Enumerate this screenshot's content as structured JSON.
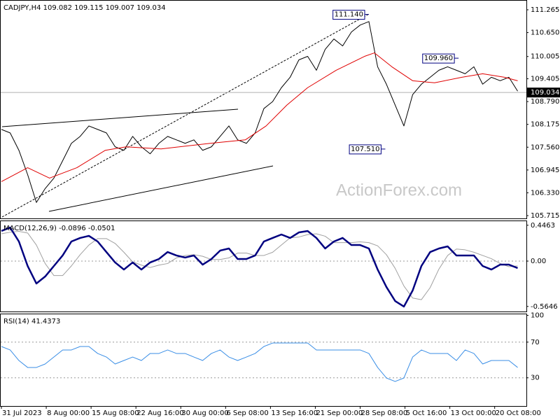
{
  "chart_data": [
    {
      "type": "line",
      "title": "CADJPY,H4 109.082 109.115 109.007 109.034",
      "watermark": "ActionForex.com",
      "xlim": [
        0,
        480
      ],
      "ylim": [
        105.64,
        111.51
      ],
      "yticks": [
        111.265,
        {
          "value": 110.65,
          "label": "110.650"
        },
        110.005,
        109.405,
        {
          "value": 108.79,
          "label": "108.790"
        },
        108.175,
        {
          "value": 107.56,
          "label": "107.560"
        },
        106.945,
        {
          "value": 106.33,
          "label": "106.330"
        },
        105.715
      ],
      "last": 109.034,
      "annotations": [
        {
          "x": 336,
          "value": 111.14,
          "label": "111.140"
        },
        {
          "x": 418,
          "value": 109.96,
          "label": "109.960"
        },
        {
          "x": 351,
          "value": 107.51,
          "label": "107.510"
        }
      ],
      "x": [
        0,
        8,
        16,
        24,
        32,
        40,
        48,
        56,
        64,
        72,
        80,
        88,
        96,
        104,
        112,
        120,
        128,
        136,
        144,
        152,
        160,
        168,
        176,
        184,
        192,
        200,
        208,
        216,
        224,
        232,
        240,
        248,
        256,
        264,
        272,
        280,
        288,
        296,
        304,
        312,
        320,
        328,
        336,
        344,
        352,
        360,
        368,
        376,
        384,
        392,
        400,
        408,
        416,
        424,
        432,
        440,
        448,
        456,
        464,
        472
      ],
      "series": [
        {
          "color": "#000000",
          "values": [
            108.039,
            107.945,
            107.476,
            106.82,
            106.069,
            106.444,
            106.726,
            107.195,
            107.664,
            107.851,
            108.133,
            108.039,
            107.945,
            107.57,
            107.476,
            107.851,
            107.57,
            107.382,
            107.664,
            107.851,
            107.758,
            107.664,
            107.758,
            107.476,
            107.57,
            107.851,
            108.133,
            107.758,
            107.664,
            107.945,
            108.602,
            108.79,
            109.165,
            109.446,
            109.915,
            110.009,
            109.634,
            110.197,
            110.478,
            110.29,
            110.666,
            110.853,
            110.947,
            109.728,
            109.259,
            108.696,
            108.133,
            108.977,
            109.259,
            109.446,
            109.634,
            109.728,
            109.634,
            109.54,
            109.728,
            109.259,
            109.446,
            109.352,
            109.446,
            109.071
          ]
        },
        {
          "color": "#e00000",
          "x": [
            0,
            24,
            44,
            69,
            95,
            114,
            146,
            191,
            223,
            242,
            261,
            280,
            306,
            332,
            341,
            357,
            376,
            396,
            421,
            440,
            460,
            472
          ],
          "values": [
            106.632,
            107.007,
            106.726,
            107.007,
            107.476,
            107.57,
            107.514,
            107.664,
            107.758,
            108.133,
            108.696,
            109.165,
            109.634,
            110.009,
            110.103,
            109.728,
            109.352,
            109.296,
            109.446,
            109.54,
            109.446,
            109.352
          ]
        }
      ]
    },
    {
      "type": "line",
      "title": "MACD(12,26,9) -0.0896 -0.0501",
      "xlim": [
        0,
        480
      ],
      "ylim": [
        -0.6275,
        0.4967
      ],
      "yticks": [
        0.4463,
        {
          "value": 0,
          "label": "0.00"
        },
        -0.5646
      ],
      "levels": [
        0
      ],
      "x": [
        0,
        8,
        16,
        24,
        32,
        40,
        48,
        56,
        64,
        72,
        80,
        88,
        96,
        104,
        112,
        120,
        128,
        136,
        144,
        152,
        160,
        168,
        176,
        184,
        192,
        200,
        208,
        216,
        224,
        232,
        240,
        248,
        256,
        264,
        272,
        280,
        288,
        296,
        304,
        312,
        320,
        328,
        336,
        344,
        352,
        360,
        368,
        376,
        384,
        392,
        400,
        408,
        416,
        424,
        432,
        440,
        448,
        456,
        464,
        472
      ],
      "series": [
        {
          "color": "#a0a0a0",
          "width": 1,
          "values": [
            0.34,
            0.36,
            0.37,
            0.35,
            0.2,
            -0.03,
            -0.18,
            -0.18,
            -0.06,
            0.08,
            0.2,
            0.28,
            0.28,
            0.22,
            0.11,
            -0.01,
            -0.05,
            -0.08,
            -0.05,
            -0.03,
            0.04,
            0.07,
            0.08,
            0.06,
            0.02,
            0.02,
            0.04,
            0.1,
            0.1,
            0.07,
            0.07,
            0.11,
            0.2,
            0.29,
            0.3,
            0.33,
            0.34,
            0.31,
            0.23,
            0.23,
            0.23,
            0.24,
            0.23,
            0.19,
            0.08,
            -0.09,
            -0.31,
            -0.46,
            -0.48,
            -0.33,
            -0.1,
            0.07,
            0.15,
            0.14,
            0.11,
            0.07,
            0.03,
            -0.03,
            -0.07,
            -0.06
          ]
        },
        {
          "color": "#000080",
          "width": 2.5,
          "values": [
            0.375,
            0.418,
            0.244,
            -0.061,
            -0.279,
            -0.192,
            -0.061,
            0.07,
            0.244,
            0.288,
            0.314,
            0.244,
            0.113,
            -0.017,
            -0.105,
            -0.017,
            -0.105,
            -0.017,
            0.026,
            0.113,
            0.07,
            0.044,
            0.07,
            -0.044,
            0.026,
            0.131,
            0.157,
            0.026,
            0.026,
            0.07,
            0.244,
            0.288,
            0.331,
            0.288,
            0.357,
            0.375,
            0.288,
            0.157,
            0.244,
            0.288,
            0.2,
            0.2,
            0.157,
            -0.105,
            -0.322,
            -0.497,
            -0.566,
            -0.366,
            -0.061,
            0.113,
            0.157,
            0.183,
            0.07,
            0.07,
            0.07,
            -0.061,
            -0.105,
            -0.044,
            -0.044,
            -0.087
          ]
        }
      ]
    },
    {
      "type": "line",
      "title": "RSI(14) 41.4373",
      "xlim": [
        0,
        480
      ],
      "ylim": [
        -1.6,
        101.2
      ],
      "yticks": [
        100,
        70,
        30
      ],
      "levels": [
        70,
        30
      ],
      "xticks": [
        {
          "value": 0,
          "label": "31 Jul 2023"
        },
        {
          "value": 41,
          "label": "8 Aug 00:00"
        },
        {
          "value": 82,
          "label": "15 Aug 08:00"
        },
        {
          "value": 123,
          "label": "22 Aug 16:00"
        },
        {
          "value": 164,
          "label": "30 Aug 00:00"
        },
        {
          "value": 205,
          "label": "6 Sep 08:00"
        },
        {
          "value": 246,
          "label": "13 Sep 16:00"
        },
        {
          "value": 287,
          "label": "21 Sep 00:00"
        },
        {
          "value": 328,
          "label": "28 Sep 08:00"
        },
        {
          "value": 369,
          "label": "5 Oct 16:00"
        },
        {
          "value": 410,
          "label": "13 Oct 00:00"
        },
        {
          "value": 451,
          "label": "20 Oct 08:00"
        }
      ],
      "x": [
        0,
        8,
        16,
        24,
        32,
        40,
        48,
        56,
        64,
        72,
        80,
        88,
        96,
        104,
        112,
        120,
        128,
        136,
        144,
        152,
        160,
        168,
        176,
        184,
        192,
        200,
        208,
        216,
        224,
        232,
        240,
        248,
        256,
        264,
        272,
        280,
        288,
        296,
        304,
        312,
        320,
        328,
        336,
        344,
        352,
        360,
        368,
        376,
        384,
        392,
        400,
        408,
        416,
        424,
        432,
        440,
        448,
        456,
        464,
        472
      ],
      "series": [
        {
          "color": "#3a8ee6",
          "width": 1,
          "values": [
            65.1,
            61.2,
            49.4,
            41.6,
            41.6,
            45.5,
            53.3,
            61.2,
            61.2,
            65.1,
            65.1,
            57.3,
            53.3,
            45.5,
            49.4,
            53.3,
            49.4,
            57.3,
            57.3,
            61.2,
            57.3,
            57.3,
            53.3,
            49.4,
            57.3,
            61.2,
            53.3,
            49.4,
            53.3,
            57.3,
            65.1,
            69.0,
            69.0,
            69.0,
            69.0,
            69.0,
            61.2,
            61.2,
            61.2,
            61.2,
            61.2,
            61.2,
            57.3,
            41.6,
            29.8,
            25.9,
            29.8,
            53.3,
            61.2,
            57.3,
            57.3,
            57.3,
            49.4,
            61.2,
            57.3,
            45.5,
            49.4,
            49.4,
            49.4,
            41.6
          ]
        }
      ]
    }
  ]
}
